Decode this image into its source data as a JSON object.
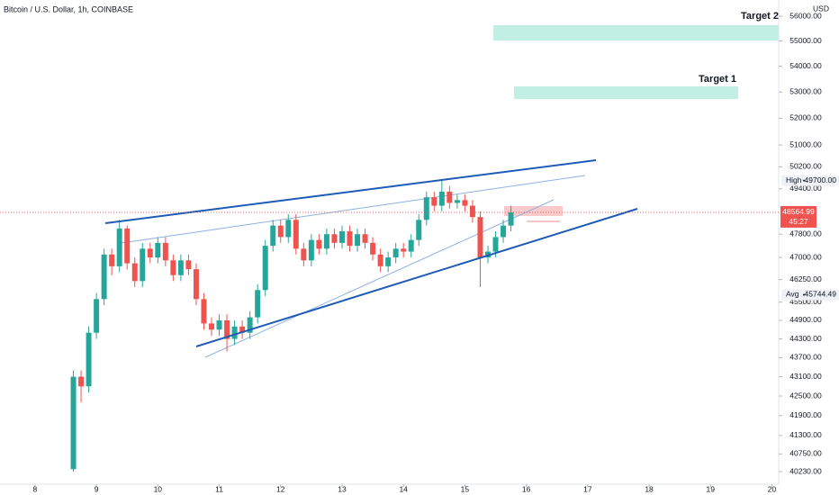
{
  "chart_data": {
    "type": "candlestick",
    "title": "Bitcoin / U.S. Dollar, 1h, COINBASE",
    "currency": "USD",
    "log_scale": true,
    "up_color": "#26a69a",
    "down_color": "#ef5350",
    "x": [
      8.625,
      8.75,
      8.875,
      9,
      9.125,
      9.25,
      9.375,
      9.5,
      9.625,
      9.75,
      9.875,
      10,
      10.125,
      10.25,
      10.375,
      10.5,
      10.625,
      10.75,
      10.875,
      11,
      11.125,
      11.25,
      11.375,
      11.5,
      11.625,
      11.75,
      11.875,
      12,
      12.125,
      12.25,
      12.375,
      12.5,
      12.625,
      12.75,
      12.875,
      13,
      13.125,
      13.25,
      13.375,
      13.5,
      13.625,
      13.75,
      13.875,
      14,
      14.125,
      14.25,
      14.375,
      14.5,
      14.625,
      14.75,
      14.875,
      15,
      15.125,
      15.25,
      15.375,
      15.5,
      15.625,
      15.75
    ],
    "open": [
      40300,
      43100,
      42800,
      44500,
      45600,
      47100,
      46700,
      48000,
      46800,
      46200,
      47300,
      47000,
      47500,
      46900,
      46400,
      46900,
      46600,
      45600,
      44800,
      44600,
      44900,
      44300,
      44700,
      44500,
      45000,
      45900,
      47400,
      48100,
      47700,
      48300,
      47300,
      46900,
      47600,
      47300,
      47800,
      47500,
      47900,
      47400,
      47800,
      47500,
      47100,
      46700,
      47000,
      47300,
      47200,
      47600,
      48300,
      49100,
      48800,
      49300,
      48900,
      49000,
      48800,
      48400,
      47000,
      47200,
      47700,
      48100
    ],
    "high": [
      43300,
      43300,
      44700,
      45800,
      47300,
      47300,
      48300,
      48100,
      47000,
      47500,
      47500,
      47700,
      47700,
      47100,
      47100,
      47100,
      46800,
      45800,
      45000,
      45100,
      45100,
      44900,
      44900,
      45200,
      46100,
      47600,
      48300,
      48300,
      48500,
      48500,
      47500,
      47800,
      47800,
      48000,
      48000,
      48100,
      48100,
      48000,
      48000,
      47700,
      47300,
      47200,
      47500,
      47500,
      47800,
      48500,
      49300,
      49300,
      49700,
      49500,
      49200,
      49200,
      49000,
      48600,
      47400,
      47900,
      48300,
      48800
    ],
    "low": [
      40230,
      42300,
      42600,
      44300,
      45400,
      46400,
      46500,
      46600,
      46000,
      46000,
      46800,
      46800,
      46700,
      46200,
      46200,
      46400,
      45400,
      44600,
      44400,
      44400,
      43900,
      44100,
      44300,
      44300,
      44800,
      45700,
      47200,
      47500,
      47500,
      47100,
      46700,
      46700,
      47100,
      47100,
      47300,
      47300,
      47200,
      47200,
      47300,
      46900,
      46500,
      46500,
      46800,
      47000,
      47000,
      47400,
      48100,
      48600,
      48600,
      48700,
      48700,
      48600,
      48200,
      46000,
      46800,
      47000,
      47500,
      47900
    ],
    "close": [
      43100,
      42800,
      44500,
      45600,
      47100,
      46700,
      48000,
      46800,
      46200,
      47300,
      47000,
      47500,
      46900,
      46400,
      46900,
      46600,
      45600,
      44800,
      44600,
      44900,
      44300,
      44700,
      44500,
      45000,
      45900,
      47400,
      48100,
      47700,
      48300,
      47300,
      46900,
      47600,
      47300,
      47800,
      47500,
      47900,
      47400,
      47800,
      47500,
      47100,
      46700,
      47000,
      47300,
      47200,
      47600,
      48300,
      49100,
      48800,
      49300,
      48900,
      49000,
      48800,
      48400,
      47000,
      47200,
      47700,
      48100,
      48564.99
    ],
    "xlim": [
      7.43,
      20.11
    ],
    "xticks": [
      8,
      9,
      10,
      11,
      12,
      13,
      14,
      15,
      16,
      17,
      18,
      19,
      20
    ],
    "ylim": [
      39864,
      56663
    ],
    "yticks": [
      {
        "value": 56000,
        "label": "56000.00"
      },
      {
        "value": 55000,
        "label": "55000.00"
      },
      {
        "value": 54000,
        "label": "54000.00"
      },
      {
        "value": 53000,
        "label": "53000.00"
      },
      {
        "value": 52000,
        "label": "52000.00"
      },
      {
        "value": 51000,
        "label": "51000.00"
      },
      {
        "value": 50200,
        "label": "50200.00"
      },
      {
        "value": 49400,
        "label": "49400.00"
      },
      {
        "value": 47800,
        "label": "47800.00"
      },
      {
        "value": 47000,
        "label": "47000.00"
      },
      {
        "value": 46250,
        "label": "46250.00"
      },
      {
        "value": 45500,
        "label": "45500.00"
      },
      {
        "value": 44900,
        "label": "44900.00"
      },
      {
        "value": 44300,
        "label": "44300.00"
      },
      {
        "value": 43700,
        "label": "43700.00"
      },
      {
        "value": 43100,
        "label": "43100.00"
      },
      {
        "value": 42500,
        "label": "42500.00"
      },
      {
        "value": 41900,
        "label": "41900.00"
      },
      {
        "value": 41300,
        "label": "41300.00"
      },
      {
        "value": 40750,
        "label": "40750.00"
      },
      {
        "value": 40230,
        "label": "40230.00"
      }
    ],
    "markers": [
      {
        "label": "High",
        "value": 49700,
        "value_label": "49700.00"
      },
      {
        "label": "Avg",
        "value": 45744.49,
        "value_label": "45744.49"
      }
    ],
    "last_price": {
      "value": 48564.99,
      "value_label": "48564.99",
      "countdown": "45:27"
    },
    "annotations": [
      "Target 2",
      "Target 1"
    ]
  }
}
